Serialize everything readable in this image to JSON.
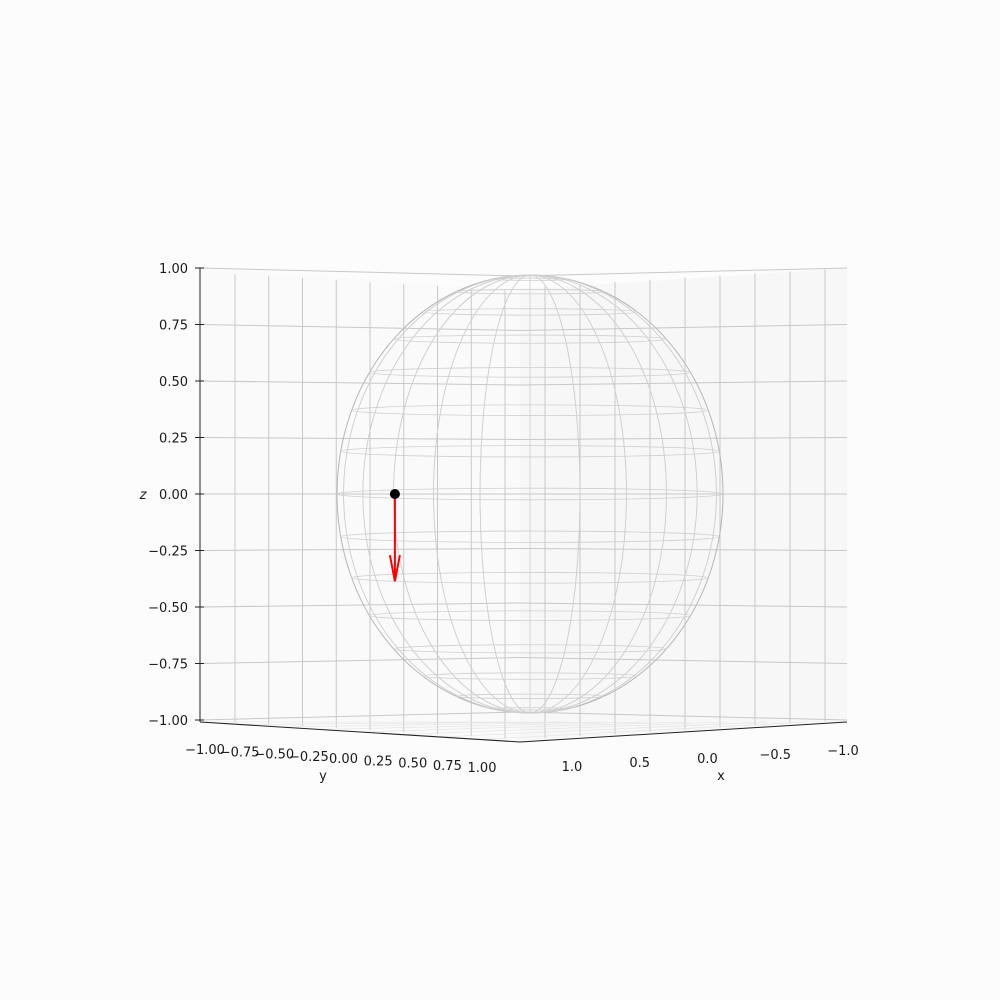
{
  "chart_data": {
    "type": "scatter",
    "projection": "3d",
    "title": "",
    "xlabel": "x",
    "ylabel": "y",
    "zlabel": "z",
    "xlim": [
      -1.0,
      1.0
    ],
    "ylim": [
      -1.0,
      1.0
    ],
    "zlim": [
      -1.0,
      1.0
    ],
    "x_ticks": [
      "−1.0",
      "−0.5",
      "0.0",
      "0.5",
      "1.0"
    ],
    "y_ticks": [
      "−1.00",
      "−0.75",
      "−0.50",
      "−0.25",
      "0.00",
      "0.25",
      "0.50",
      "0.75",
      "1.00"
    ],
    "z_ticks": [
      "−1.00",
      "−0.75",
      "−0.50",
      "−0.25",
      "0.00",
      "0.25",
      "0.50",
      "0.75",
      "1.00"
    ],
    "grid": true,
    "surface": {
      "type": "unit-sphere-wireframe",
      "radius": 1.0,
      "color": "#cfcfcf"
    },
    "point": {
      "x": 0.0,
      "y": -0.7,
      "z": 0.0,
      "color": "#000000"
    },
    "vector": {
      "origin": [
        0.0,
        -0.7,
        0.0
      ],
      "direction": [
        0.0,
        0.0,
        -0.4
      ],
      "color": "#ff0000"
    }
  }
}
